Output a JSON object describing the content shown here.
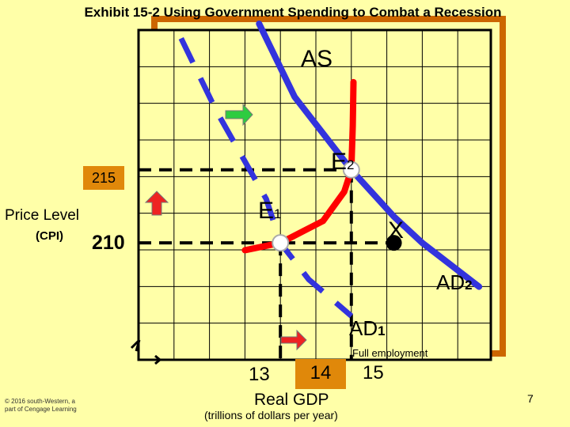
{
  "title": "Exhibit 15-2 Using Government Spending to Combat a Recession",
  "colors": {
    "background": "#ffffa8",
    "as_curve": "#ff0000",
    "ad_curves": "#3333dd",
    "frame": "#cc6600",
    "highlight": "#e0880a",
    "arrow_right": "#2ecc40",
    "arrow_red": "#ee2222"
  },
  "icons": [
    "arrow-right-icon",
    "arrow-up-icon"
  ],
  "chart_data": {
    "type": "line",
    "title": "Exhibit 15-2 Using Government Spending to Combat a Recession",
    "ylabel": "Price Level",
    "ylabel_sub": "(CPI)",
    "xlabel": "Real GDP",
    "xlabel_sub": "(trillions of dollars per year)",
    "x_ticks": [
      "13",
      "14",
      "15"
    ],
    "y_ticks": [
      "210",
      "215"
    ],
    "xlim": [
      11,
      16
    ],
    "ylim": [
      202,
      225
    ],
    "grid": true,
    "series": [
      {
        "name": "AS",
        "points": [
          [
            12.5,
            209.5
          ],
          [
            13,
            210
          ],
          [
            13.6,
            211.5
          ],
          [
            13.9,
            213.5
          ],
          [
            14,
            215
          ],
          [
            14.02,
            218
          ],
          [
            14.03,
            221
          ]
        ]
      },
      {
        "name": "AD",
        "subscript": "1",
        "points": [
          [
            11.6,
            224
          ],
          [
            12.1,
            219
          ],
          [
            12.8,
            213
          ],
          [
            13,
            210
          ],
          [
            13.4,
            207.5
          ],
          [
            14,
            205
          ]
        ]
      },
      {
        "name": "AD",
        "subscript": "2",
        "points": [
          [
            12.7,
            225
          ],
          [
            13.2,
            220
          ],
          [
            14,
            215
          ],
          [
            14.6,
            211.8
          ],
          [
            15,
            210
          ],
          [
            15.8,
            207
          ]
        ]
      }
    ],
    "points": [
      {
        "label": "E",
        "subscript": "1",
        "x": 13,
        "y": 210
      },
      {
        "label": "E",
        "subscript": "2",
        "x": 14,
        "y": 215
      },
      {
        "label": "X",
        "x": 14.6,
        "y": 210
      }
    ],
    "annotations": [
      "Full employment"
    ],
    "full_employment_gdp": 14
  },
  "copyright_line1": "© 2016 south-Western, a",
  "copyright_line2": "part of Cengage Learning",
  "page_number": "7"
}
